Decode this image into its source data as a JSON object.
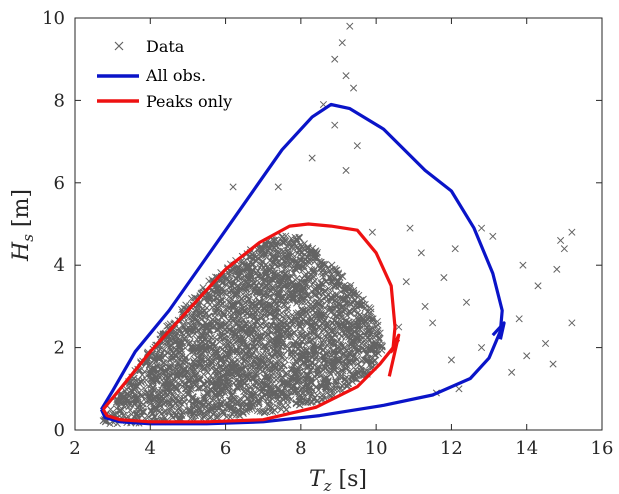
{
  "chart_data": {
    "type": "scatter",
    "xlabel": {
      "var": "T",
      "sub": "z",
      "unit": " [s]"
    },
    "ylabel": {
      "var": "H",
      "sub": "s",
      "unit": " [m]"
    },
    "xlim": [
      2,
      16
    ],
    "ylim": [
      0,
      10
    ],
    "xticks": [
      2,
      4,
      6,
      8,
      10,
      12,
      14,
      16
    ],
    "yticks": [
      0,
      2,
      4,
      6,
      8,
      10
    ],
    "grid": false,
    "legend_position": "top-left",
    "series": [
      {
        "name": "Data",
        "kind": "scatter",
        "marker": "x",
        "color": "#636363",
        "dense_region": [
          [
            2.7,
            0.25
          ],
          [
            3.0,
            0.6
          ],
          [
            3.6,
            1.5
          ],
          [
            4.5,
            2.6
          ],
          [
            5.5,
            3.6
          ],
          [
            6.8,
            4.5
          ],
          [
            7.8,
            4.8
          ],
          [
            8.6,
            4.2
          ],
          [
            9.4,
            3.5
          ],
          [
            10.0,
            2.8
          ],
          [
            10.2,
            2.0
          ],
          [
            9.8,
            1.3
          ],
          [
            8.8,
            0.8
          ],
          [
            7.5,
            0.45
          ],
          [
            5.5,
            0.25
          ],
          [
            3.8,
            0.15
          ],
          [
            2.9,
            0.15
          ]
        ],
        "outliers": [
          [
            9.3,
            9.8
          ],
          [
            9.1,
            9.4
          ],
          [
            8.9,
            9.0
          ],
          [
            9.2,
            8.6
          ],
          [
            9.4,
            8.3
          ],
          [
            8.6,
            7.9
          ],
          [
            8.9,
            7.4
          ],
          [
            9.5,
            6.9
          ],
          [
            8.3,
            6.6
          ],
          [
            9.2,
            6.3
          ],
          [
            7.4,
            5.9
          ],
          [
            6.2,
            5.9
          ],
          [
            9.9,
            4.8
          ],
          [
            10.9,
            4.9
          ],
          [
            11.2,
            4.3
          ],
          [
            12.1,
            4.4
          ],
          [
            12.8,
            4.9
          ],
          [
            13.1,
            4.7
          ],
          [
            11.8,
            3.7
          ],
          [
            12.4,
            3.1
          ],
          [
            13.9,
            4.0
          ],
          [
            14.3,
            3.5
          ],
          [
            14.9,
            4.6
          ],
          [
            15.2,
            4.8
          ],
          [
            15.0,
            4.4
          ],
          [
            14.8,
            3.9
          ],
          [
            15.2,
            2.6
          ],
          [
            13.8,
            2.7
          ],
          [
            14.5,
            2.1
          ],
          [
            12.8,
            2.0
          ],
          [
            13.6,
            1.4
          ],
          [
            14.0,
            1.8
          ],
          [
            14.7,
            1.6
          ],
          [
            11.5,
            2.6
          ],
          [
            12.0,
            1.7
          ],
          [
            11.6,
            0.9
          ],
          [
            12.2,
            1.0
          ],
          [
            10.8,
            3.6
          ],
          [
            11.3,
            3.0
          ],
          [
            10.6,
            2.5
          ]
        ]
      },
      {
        "name": "All obs.",
        "kind": "line",
        "color": "#0a14c8",
        "points": [
          [
            2.7,
            0.5
          ],
          [
            3.0,
            0.95
          ],
          [
            3.6,
            1.9
          ],
          [
            4.5,
            2.9
          ],
          [
            5.5,
            4.2
          ],
          [
            6.5,
            5.5
          ],
          [
            7.5,
            6.8
          ],
          [
            8.3,
            7.6
          ],
          [
            8.8,
            7.9
          ],
          [
            9.3,
            7.8
          ],
          [
            10.2,
            7.3
          ],
          [
            11.3,
            6.3
          ],
          [
            12.0,
            5.8
          ],
          [
            12.6,
            4.9
          ],
          [
            13.1,
            3.8
          ],
          [
            13.35,
            2.9
          ],
          [
            13.3,
            2.4
          ],
          [
            13.0,
            1.75
          ],
          [
            12.5,
            1.25
          ],
          [
            11.5,
            0.85
          ],
          [
            10.2,
            0.6
          ],
          [
            8.5,
            0.35
          ],
          [
            7.0,
            0.2
          ],
          [
            5.5,
            0.15
          ],
          [
            4.0,
            0.15
          ],
          [
            3.2,
            0.2
          ],
          [
            2.8,
            0.3
          ],
          [
            2.7,
            0.5
          ]
        ],
        "tail": [
          [
            13.1,
            2.3
          ],
          [
            13.4,
            2.6
          ],
          [
            13.3,
            2.2
          ]
        ]
      },
      {
        "name": "Peaks only",
        "kind": "line",
        "color": "#ee1111",
        "points": [
          [
            2.75,
            0.5
          ],
          [
            3.2,
            1.0
          ],
          [
            4.0,
            1.9
          ],
          [
            5.0,
            2.9
          ],
          [
            6.0,
            3.9
          ],
          [
            6.9,
            4.55
          ],
          [
            7.7,
            4.95
          ],
          [
            8.2,
            5.0
          ],
          [
            8.8,
            4.95
          ],
          [
            9.5,
            4.85
          ],
          [
            10.0,
            4.3
          ],
          [
            10.4,
            3.5
          ],
          [
            10.5,
            2.5
          ],
          [
            10.45,
            2.0
          ],
          [
            10.1,
            1.6
          ],
          [
            9.5,
            1.05
          ],
          [
            8.4,
            0.55
          ],
          [
            7.0,
            0.25
          ],
          [
            5.5,
            0.2
          ],
          [
            4.0,
            0.2
          ],
          [
            3.2,
            0.25
          ],
          [
            2.85,
            0.35
          ],
          [
            2.75,
            0.5
          ]
        ],
        "tail": [
          [
            10.35,
            1.3
          ],
          [
            10.6,
            2.3
          ],
          [
            10.4,
            1.9
          ],
          [
            10.6,
            2.2
          ]
        ]
      }
    ]
  }
}
